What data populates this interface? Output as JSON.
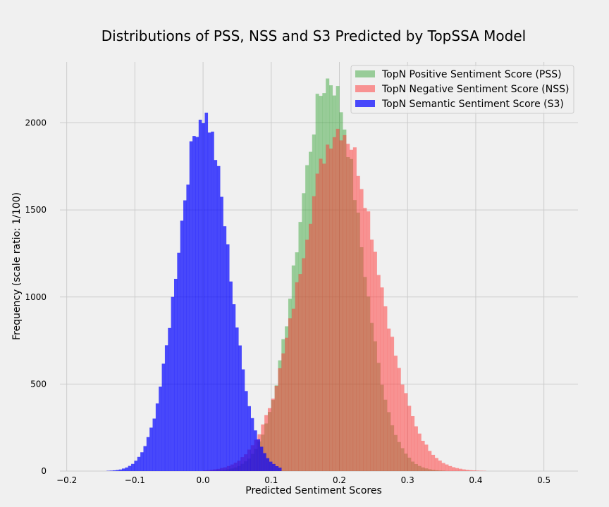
{
  "chart_data": {
    "type": "histogram",
    "title": "Distributions of PSS, NSS and S3 Predicted by TopSSA Model",
    "xlabel": "Predicted Sentiment Scores",
    "ylabel": "Frequency (scale ratio: 1/100)",
    "xlim": [
      -0.21,
      0.55
    ],
    "ylim": [
      0,
      2350
    ],
    "x_ticks": [
      -0.2,
      -0.1,
      0.0,
      0.1,
      0.2,
      0.3,
      0.4,
      0.5
    ],
    "x_tick_labels": [
      "−0.2",
      "−0.1",
      "0.0",
      "0.1",
      "0.2",
      "0.3",
      "0.4",
      "0.5"
    ],
    "y_ticks": [
      0,
      500,
      1000,
      1500,
      2000
    ],
    "y_tick_labels": [
      "0",
      "500",
      "1000",
      "1500",
      "2000"
    ],
    "grid": true,
    "legend_position": "top-right",
    "series": [
      {
        "name": "TopN Positive Sentiment Score (PSS)",
        "color": "#2ca02c",
        "opacity": 0.45,
        "mean": 0.185,
        "sd": 0.045,
        "peak": 2250,
        "bin_width": 0.005,
        "range": [
          0.0,
          0.42
        ]
      },
      {
        "name": "TopN Negative Sentiment Score (NSS)",
        "color": "#ff3333",
        "opacity": 0.5,
        "mean": 0.2,
        "sd": 0.056,
        "peak": 1970,
        "bin_width": 0.005,
        "range": [
          0.0,
          0.45
        ]
      },
      {
        "name": "TopN Semantic Sentiment Score (S3)",
        "color": "#0000ff",
        "opacity": 0.7,
        "mean": 0.0,
        "sd": 0.037,
        "peak": 2050,
        "bin_width": 0.0045,
        "range": [
          -0.155,
          0.115
        ]
      }
    ]
  }
}
